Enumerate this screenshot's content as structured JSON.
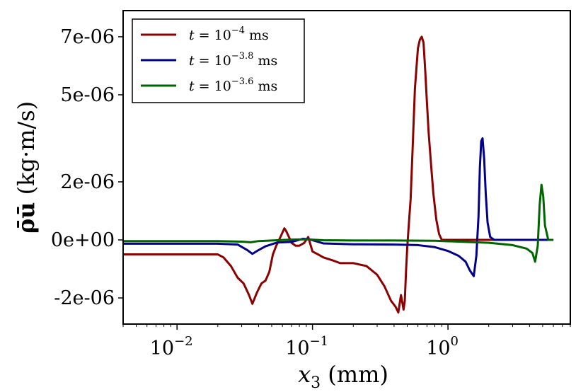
{
  "chart_data": {
    "type": "line",
    "xlabel": "x3 (mm)",
    "ylabel": "ρ̄ū (kg·m/s)",
    "xscale": "log",
    "xlim": [
      0.004,
      8
    ],
    "ylim": [
      -2.9e-06,
      7.9e-06
    ],
    "xticks": [
      {
        "value": 0.01,
        "base": "10",
        "exp": "−2"
      },
      {
        "value": 0.1,
        "base": "10",
        "exp": "−1"
      },
      {
        "value": 1,
        "base": "10",
        "exp": "0"
      }
    ],
    "yticks": [
      {
        "value": 7e-06,
        "label": "7e-06"
      },
      {
        "value": 5e-06,
        "label": "5e-06"
      },
      {
        "value": 2e-06,
        "label": "2e-06"
      },
      {
        "value": 0,
        "label": "0e+00"
      },
      {
        "value": -2e-06,
        "label": "-2e-06"
      }
    ],
    "legend": {
      "position": "top-left"
    },
    "grid": false,
    "series": [
      {
        "name": "t = 10^-4 ms",
        "label_main": "t = 10",
        "label_exp": "−4",
        "label_unit": " ms",
        "color": "#8b0000",
        "x": [
          0.004,
          0.02,
          0.022,
          0.025,
          0.028,
          0.031,
          0.034,
          0.036,
          0.039,
          0.042,
          0.045,
          0.048,
          0.051,
          0.054,
          0.058,
          0.062,
          0.064,
          0.067,
          0.07,
          0.075,
          0.08,
          0.087,
          0.093,
          0.1,
          0.11,
          0.12,
          0.14,
          0.16,
          0.2,
          0.25,
          0.3,
          0.34,
          0.38,
          0.41,
          0.43,
          0.45,
          0.47,
          0.48,
          0.49,
          0.5,
          0.51,
          0.53,
          0.55,
          0.57,
          0.6,
          0.62,
          0.64,
          0.66,
          0.68,
          0.7,
          0.72,
          0.75,
          0.78,
          0.82,
          0.86,
          0.9,
          0.95,
          1.0,
          1.1,
          1.3,
          1.6,
          2.0,
          3.0,
          4.0,
          5.0,
          6.0
        ],
        "y": [
          -5e-07,
          -5e-07,
          -6e-07,
          -9e-07,
          -1.3e-06,
          -1.5e-06,
          -1.9e-06,
          -2.2e-06,
          -1.8e-06,
          -1.5e-06,
          -1.4e-06,
          -1.1e-06,
          -5e-07,
          -2e-07,
          1e-07,
          4e-07,
          3e-07,
          1e-07,
          -1e-07,
          -2e-07,
          -2e-07,
          -1e-07,
          1e-07,
          -4e-07,
          -5e-07,
          -6e-07,
          -7e-07,
          -8e-07,
          -8e-07,
          -9e-07,
          -1.2e-06,
          -1.6e-06,
          -2.1e-06,
          -2.3e-06,
          -2.5e-06,
          -1.9e-06,
          -2.4e-06,
          -2.1e-06,
          -1.1e-06,
          -3e-07,
          3e-07,
          1.4e-06,
          3.3e-06,
          5.2e-06,
          6.6e-06,
          6.9e-06,
          7e-06,
          6.8e-06,
          5.8e-06,
          4.7e-06,
          3.7e-06,
          2.6e-06,
          1.6e-06,
          7e-07,
          2e-07,
          0.0,
          0.0,
          0.0,
          0.0,
          0.0,
          0.0,
          0.0,
          0.0,
          0.0,
          0.0,
          0.0
        ]
      },
      {
        "name": "t = 10^-3.8 ms",
        "label_main": "t = 10",
        "label_exp": "−3.8",
        "label_unit": " ms",
        "color": "#00008b",
        "x": [
          0.004,
          0.02,
          0.028,
          0.033,
          0.036,
          0.04,
          0.045,
          0.055,
          0.07,
          0.085,
          0.095,
          0.12,
          0.2,
          0.4,
          0.6,
          0.8,
          1.0,
          1.2,
          1.35,
          1.45,
          1.55,
          1.62,
          1.68,
          1.72,
          1.76,
          1.8,
          1.85,
          1.9,
          1.96,
          2.05,
          2.2,
          2.5,
          3.0,
          4.0,
          5.0,
          6.0
        ],
        "y": [
          -1.3e-07,
          -1.3e-07,
          -1.6e-07,
          -3.5e-07,
          -4.8e-07,
          -3.5e-07,
          -2.2e-07,
          -9e-08,
          -7e-08,
          4e-08,
          2e-08,
          -1.2e-07,
          -1.5e-07,
          -1.6e-07,
          -1.8e-07,
          -2.5e-07,
          -3.8e-07,
          -5.5e-07,
          -7.5e-07,
          -1.05e-06,
          -1.25e-06,
          -5.5e-07,
          8e-07,
          2.5e-06,
          3.4e-06,
          3.5e-06,
          2.8e-06,
          1.6e-06,
          6e-07,
          1e-07,
          0.0,
          0.0,
          0.0,
          0.0,
          0.0,
          0.0
        ]
      },
      {
        "name": "t = 10^-3.6 ms",
        "label_main": "t = 10",
        "label_exp": "−3.6",
        "label_unit": " ms",
        "color": "#006400",
        "x": [
          0.004,
          0.02,
          0.03,
          0.035,
          0.04,
          0.05,
          0.07,
          0.09,
          0.12,
          0.2,
          0.4,
          0.8,
          1.2,
          2.0,
          3.0,
          3.8,
          4.2,
          4.4,
          4.6,
          4.75,
          4.9,
          5.05,
          5.2,
          5.5,
          6.0
        ],
        "y": [
          -4e-08,
          -4e-08,
          -6e-08,
          -8e-08,
          -4e-08,
          -2e-08,
          1e-08,
          2e-08,
          -1e-08,
          -2e-08,
          -2e-08,
          -3e-08,
          -6e-08,
          -1e-07,
          -1.8e-07,
          -3e-07,
          -4.5e-07,
          -7.5e-07,
          -2e-07,
          1.2e-06,
          1.9e-06,
          1.5e-06,
          5e-07,
          0.0,
          0.0
        ]
      }
    ]
  }
}
